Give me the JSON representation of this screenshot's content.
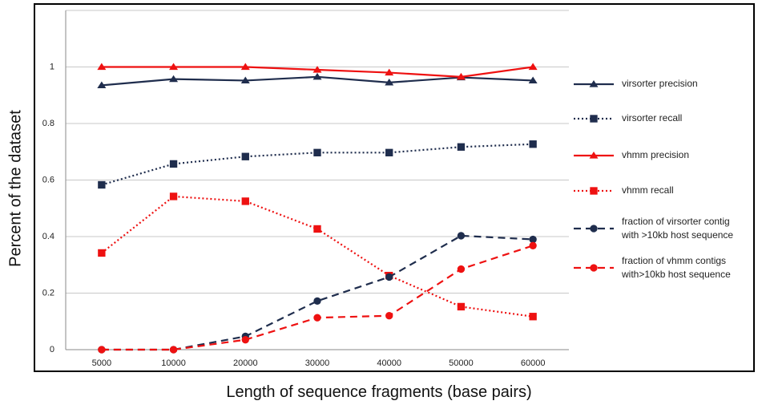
{
  "chart_data": {
    "type": "line",
    "title": "",
    "xlabel": "Length of sequence fragments (base pairs)",
    "ylabel": "Percent of the dataset",
    "categories": [
      "5000",
      "10000",
      "20000",
      "30000",
      "40000",
      "50000",
      "60000"
    ],
    "ylim": [
      0,
      1.2
    ],
    "yticks": [
      "0",
      "0.2",
      "0.4",
      "0.6",
      "0.8",
      "1"
    ],
    "grid": "horizontal",
    "legend_position": "right",
    "series": [
      {
        "name": "virsorter precision",
        "color": "#1f2d4d",
        "dash": "solid",
        "marker": "triangle",
        "values": [
          0.935,
          0.957,
          0.952,
          0.965,
          0.945,
          0.963,
          0.952
        ]
      },
      {
        "name": "virsorter recall",
        "color": "#1f2d4d",
        "dash": "dotted",
        "marker": "square",
        "values": [
          0.583,
          0.657,
          0.683,
          0.697,
          0.697,
          0.717,
          0.727
        ]
      },
      {
        "name": "vhmm precision",
        "color": "#ee1111",
        "dash": "solid",
        "marker": "triangle",
        "values": [
          1.0,
          1.0,
          1.0,
          0.99,
          0.98,
          0.965,
          1.0
        ]
      },
      {
        "name": "vhmm recall",
        "color": "#ee1111",
        "dash": "dotted",
        "marker": "square",
        "values": [
          0.342,
          0.542,
          0.525,
          0.427,
          0.262,
          0.152,
          0.117
        ]
      },
      {
        "name": "fraction of virsorter contig\nwith >10kb host sequence",
        "color": "#1f2d4d",
        "dash": "dashed",
        "marker": "circle",
        "values": [
          0.0,
          0.0,
          0.047,
          0.172,
          0.257,
          0.403,
          0.39
        ]
      },
      {
        "name": "fraction of vhmm contigs\nwith>10kb host sequence",
        "color": "#ee1111",
        "dash": "dashed",
        "marker": "circle",
        "values": [
          0.0,
          0.0,
          0.035,
          0.113,
          0.12,
          0.285,
          0.368
        ]
      }
    ]
  }
}
